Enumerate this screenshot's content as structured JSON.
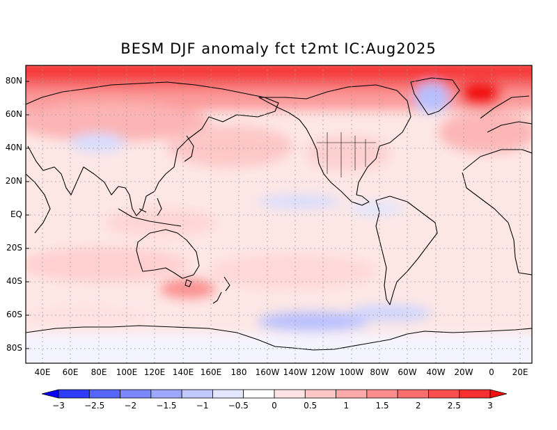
{
  "title": "BESM   DJF anomaly fct t2mt IC:Aug2025",
  "lat_labels": [
    "80N",
    "60N",
    "40N",
    "20N",
    "EQ",
    "20S",
    "40S",
    "60S",
    "80S"
  ],
  "lon_labels": [
    "40E",
    "60E",
    "80E",
    "100E",
    "120E",
    "140E",
    "160E",
    "180",
    "160W",
    "140W",
    "120W",
    "100W",
    "80W",
    "60W",
    "40W",
    "20W",
    "0",
    "20E"
  ],
  "colorbar": {
    "labels": [
      "-3",
      "-2.5",
      "-2",
      "-1.5",
      "-1",
      "-0.5",
      "0",
      "0.5",
      "1",
      "1.5",
      "2",
      "2.5",
      "3"
    ],
    "colors": [
      "#0a00fa",
      "#2e3dfb",
      "#5566fb",
      "#7a88fc",
      "#9ea9fd",
      "#c2c9fe",
      "#e2e6ff",
      "#ffffff",
      "#ffe4e4",
      "#ffc7c7",
      "#ffaaaa",
      "#fd8c8c",
      "#fb6e6e",
      "#f94f4f",
      "#f63030",
      "#f21010"
    ]
  },
  "map": {
    "projection": "equirectangular",
    "lon_range": [
      30,
      390
    ],
    "lat_range": [
      -90,
      90
    ],
    "field": "2m temperature anomaly forecast",
    "colors": {
      "land_outline": "#000000",
      "grid": "#9a9a9a",
      "ocean_base": "#fde4e2"
    }
  }
}
